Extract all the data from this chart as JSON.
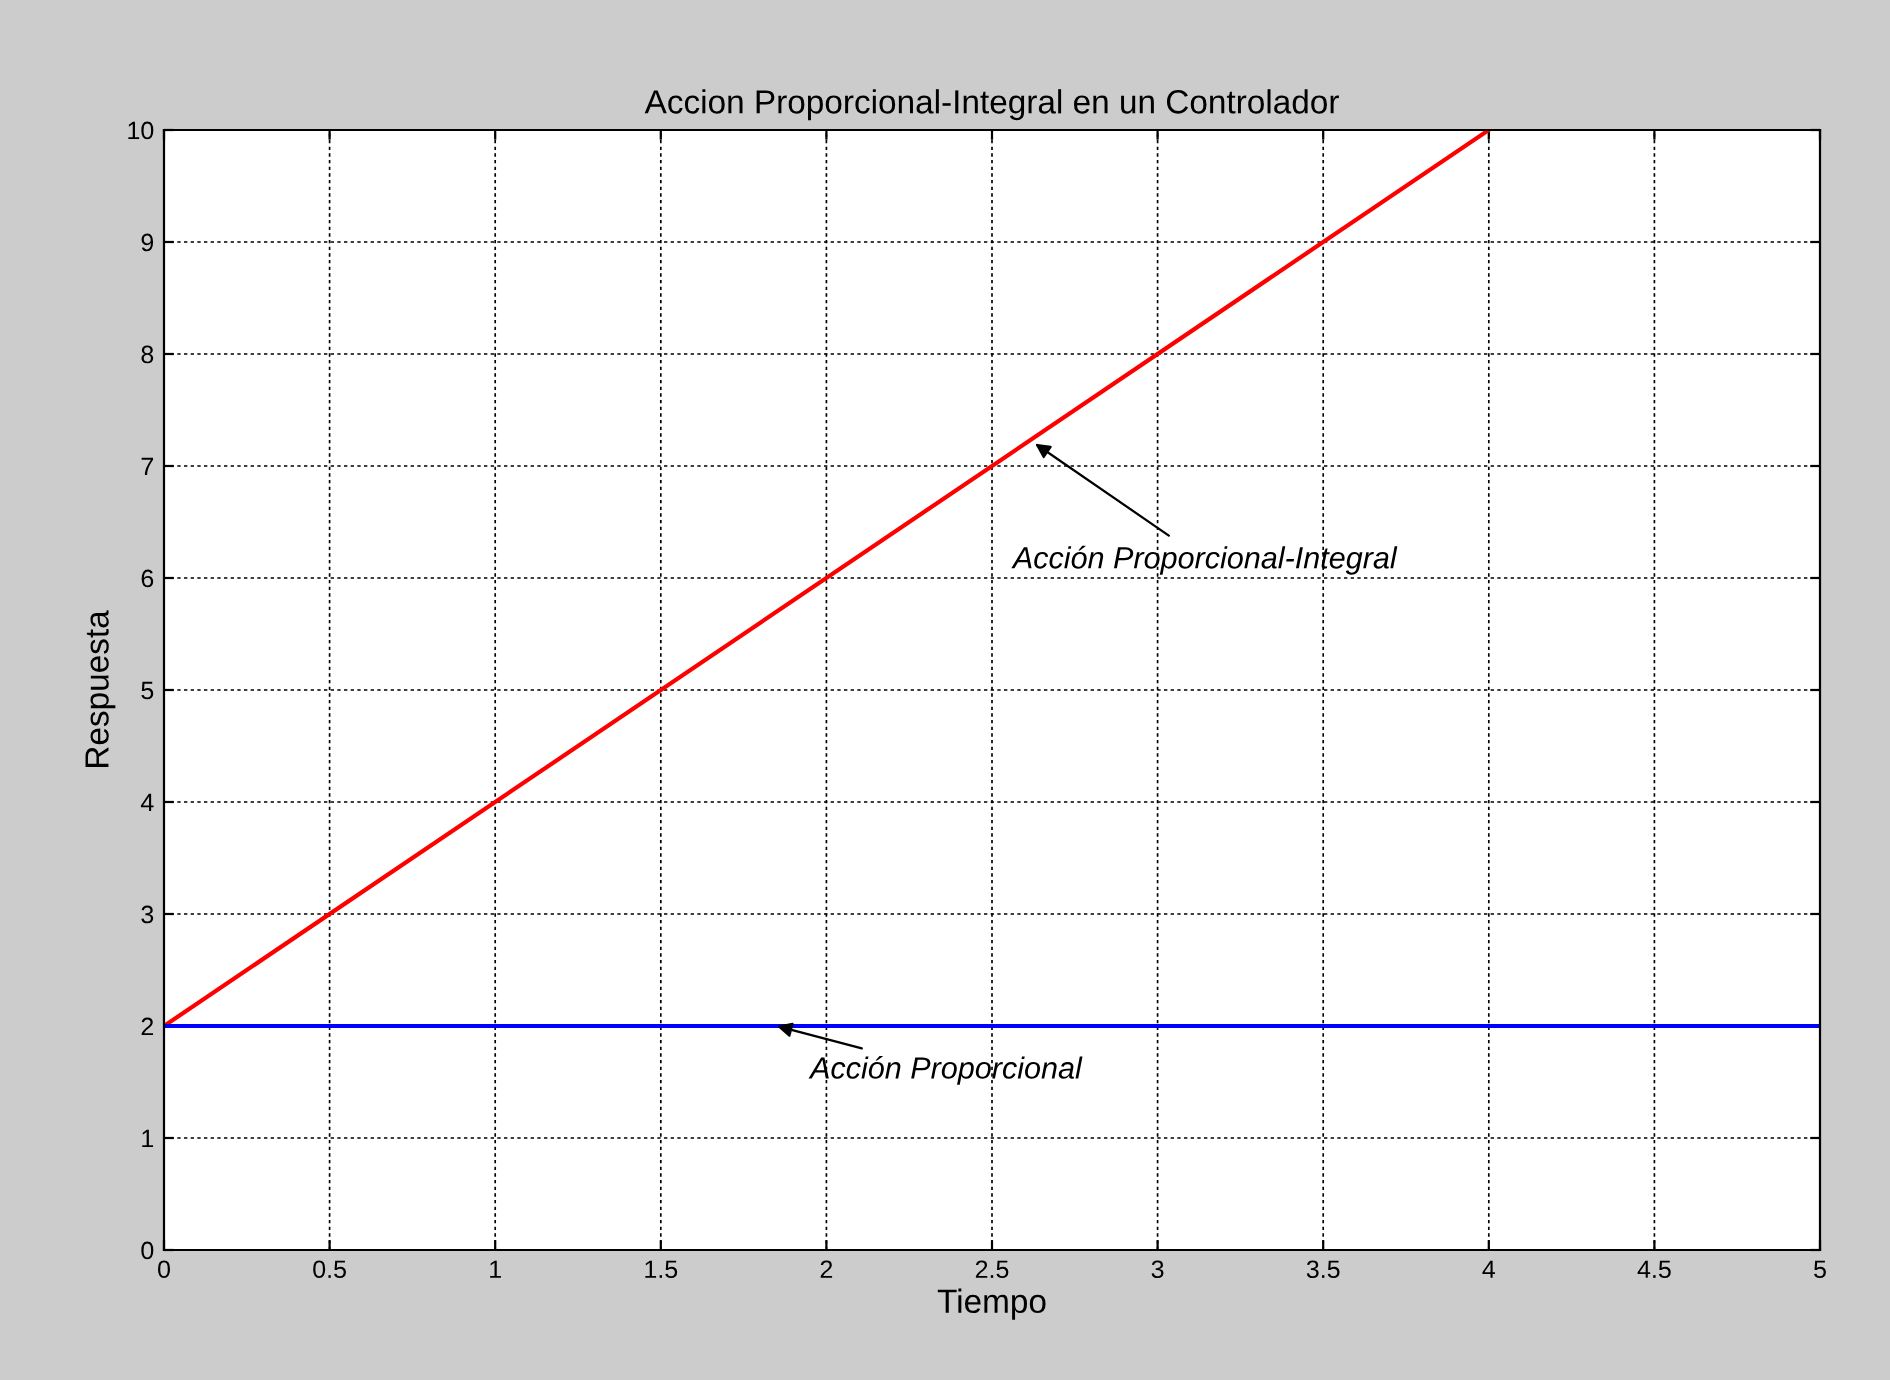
{
  "chart_data": {
    "type": "line",
    "title": "Accion Proporcional-Integral en un Controlador",
    "xlabel": "Tiempo",
    "ylabel": "Respuesta",
    "series": [
      {
        "color": "#ff0000",
        "x": [
          0,
          4
        ],
        "values": [
          2,
          10
        ]
      },
      {
        "color": "#0000ff",
        "x": [
          0,
          5
        ],
        "values": [
          2,
          2
        ]
      }
    ],
    "annotations": [
      {
        "text": "Acción Proporcional-Integral",
        "x": 2.63,
        "y": 7.2
      },
      {
        "text": "Acción Proporcional",
        "x": 1.85,
        "y": 2
      }
    ],
    "xlim": [
      0,
      5
    ],
    "ylim": [
      0,
      10
    ],
    "xticks": [
      0,
      0.5,
      1,
      1.5,
      2,
      2.5,
      3,
      3.5,
      4,
      4.5,
      5
    ],
    "yticks": [
      0,
      1,
      2,
      3,
      4,
      5,
      6,
      7,
      8,
      9,
      10
    ],
    "grid": true,
    "line_style": "solid",
    "marker": "none"
  }
}
